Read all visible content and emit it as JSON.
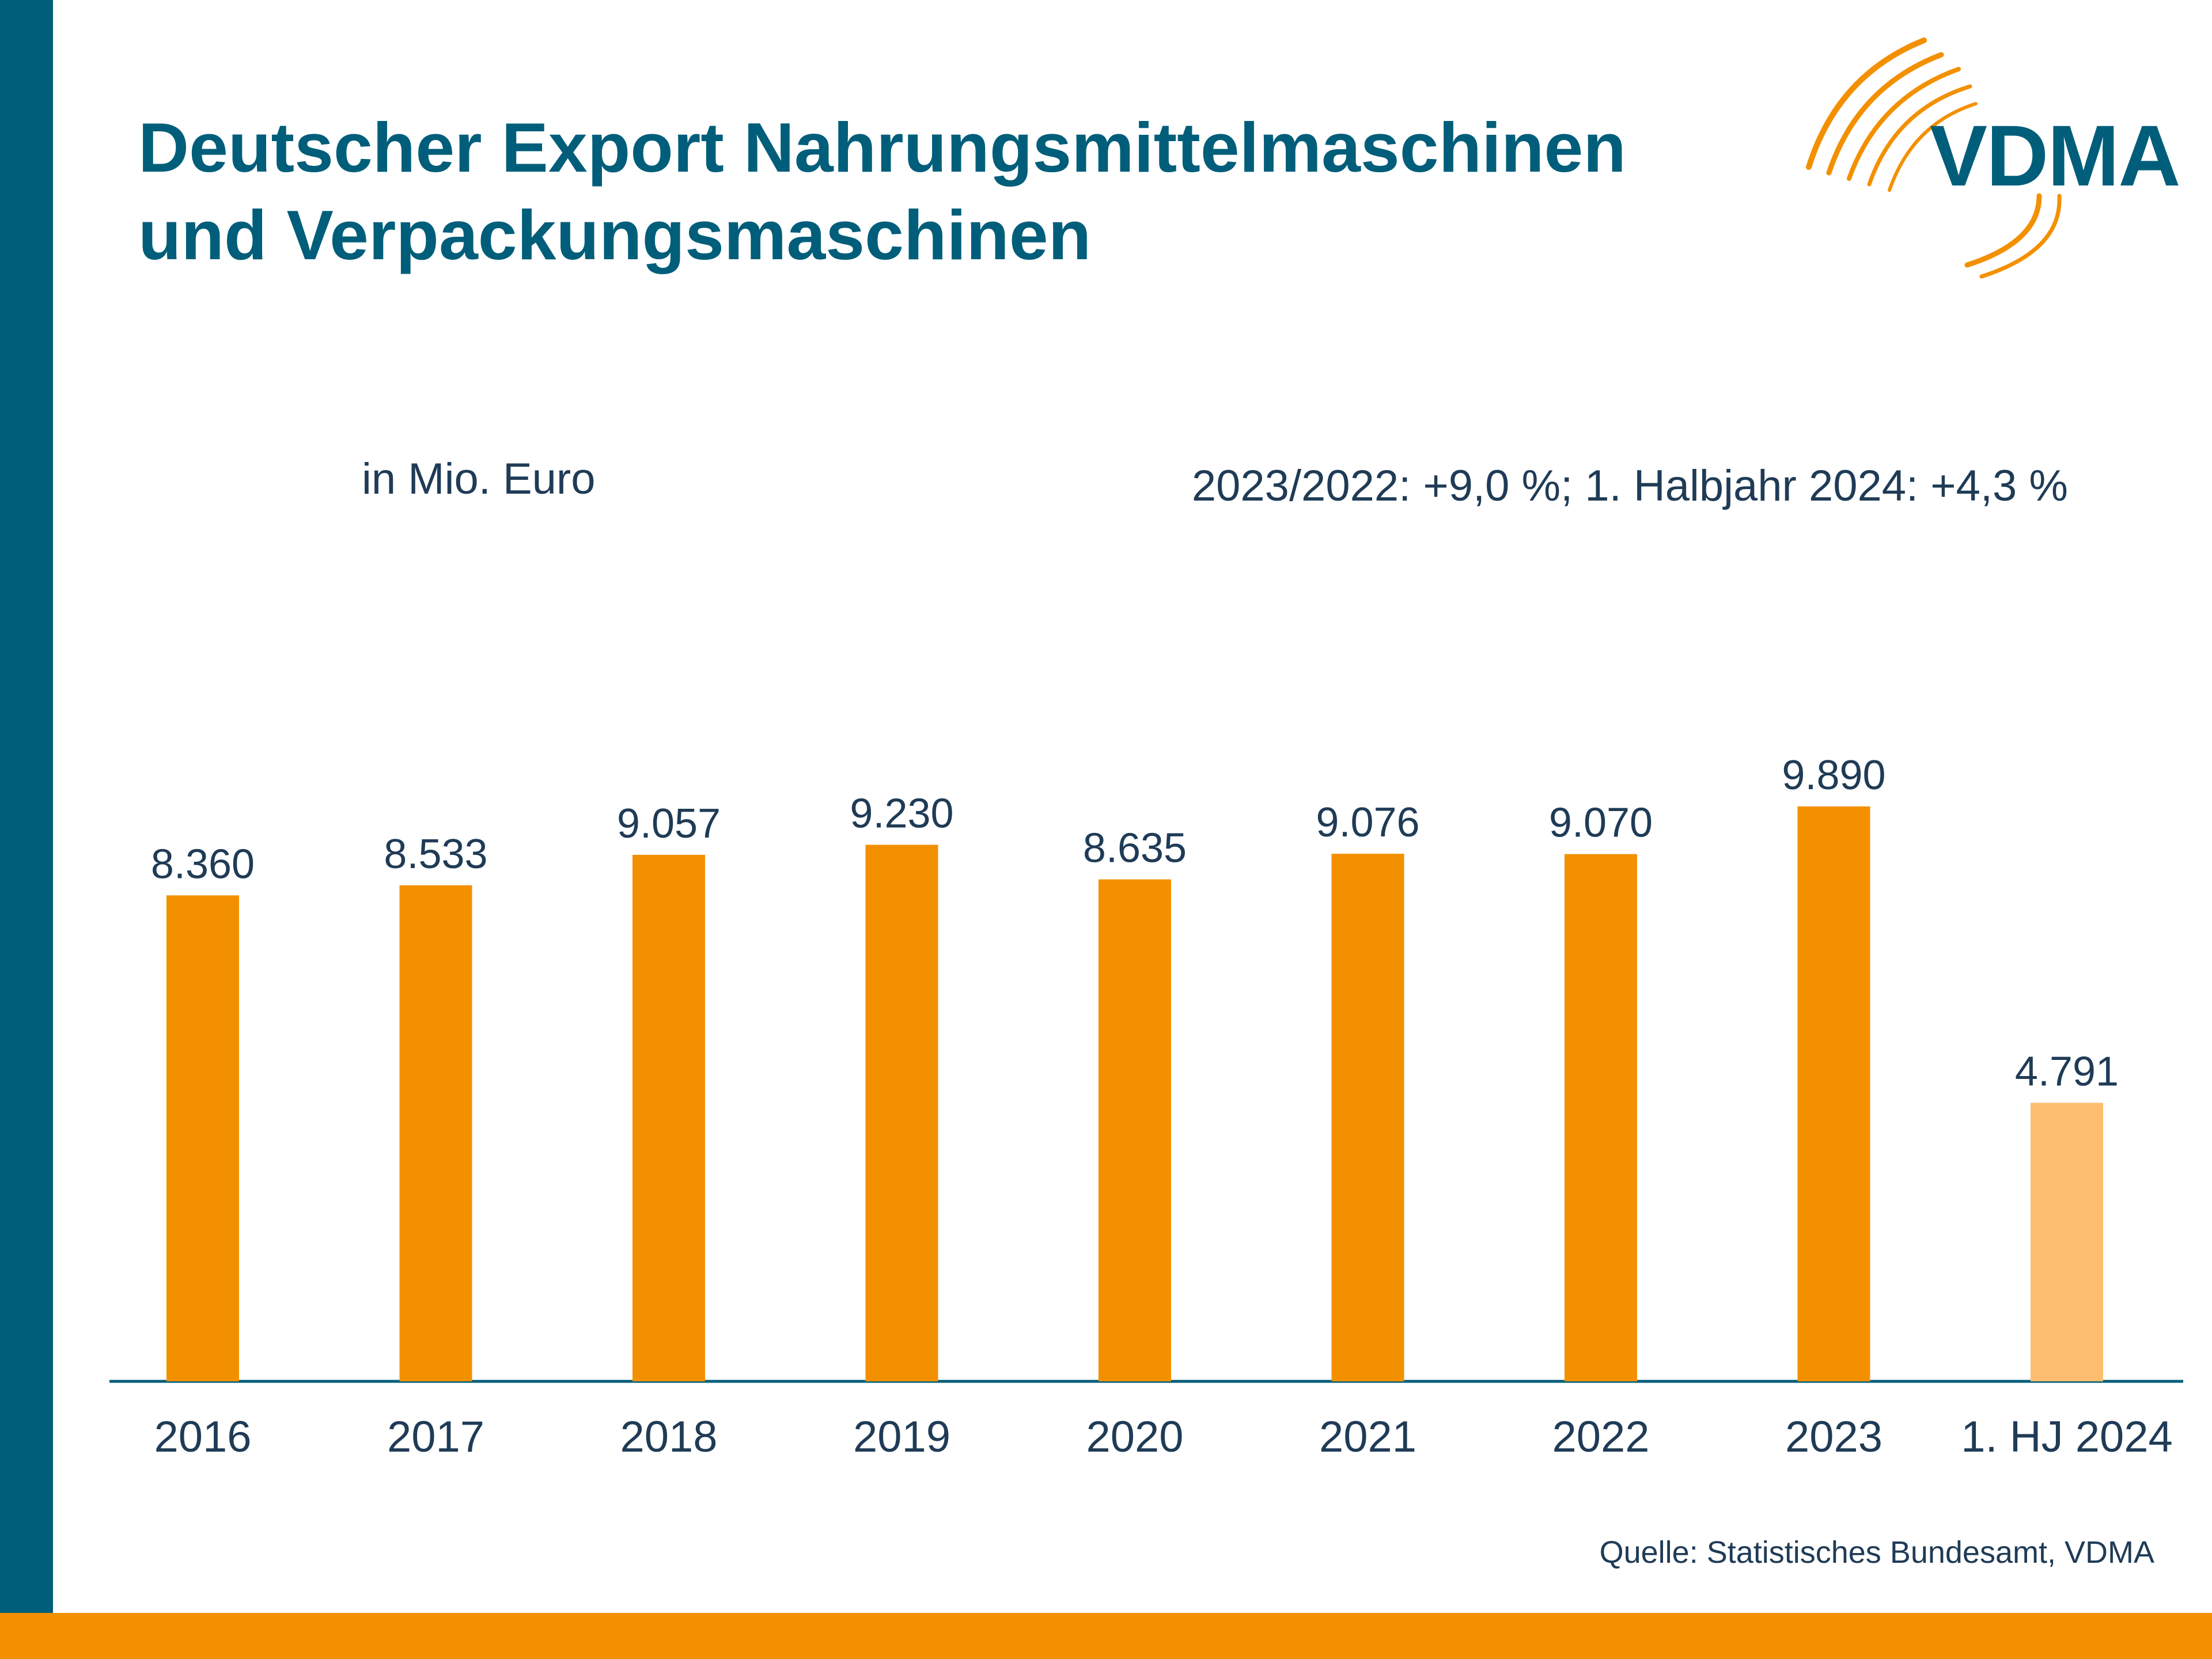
{
  "header": {
    "title_line1": "Deutscher Export Nahrungsmittelmaschinen",
    "title_line2": "und Verpackungsmaschinen",
    "logo_text": "VDMA"
  },
  "chart_data": {
    "type": "bar",
    "categories": [
      "2016",
      "2017",
      "2018",
      "2019",
      "2020",
      "2021",
      "2022",
      "2023",
      "1. HJ 2024"
    ],
    "values": [
      8360,
      8533,
      9057,
      9230,
      8635,
      9076,
      9070,
      9890,
      4791
    ],
    "value_labels": [
      "8.360",
      "8.533",
      "9.057",
      "9.230",
      "8.635",
      "9.076",
      "9.070",
      "9.890",
      "4.791"
    ],
    "ylim": [
      0,
      10900
    ],
    "unit_label": "in Mio. Euro",
    "annotation": "2023/2022: +9,0 %; 1. Halbjahr 2024: +4,3 %",
    "colors": {
      "bar": "#f39000",
      "bar_partial": "#fdbd6f",
      "axis": "#005e7a",
      "text": "#1f3b56"
    },
    "highlighted_category_index": 8,
    "grid": false
  },
  "footer": {
    "source": "Quelle: Statistisches Bundesamt, VDMA"
  },
  "theme": {
    "left_bar_color": "#005e7a",
    "bottom_bar_color": "#f39000"
  }
}
